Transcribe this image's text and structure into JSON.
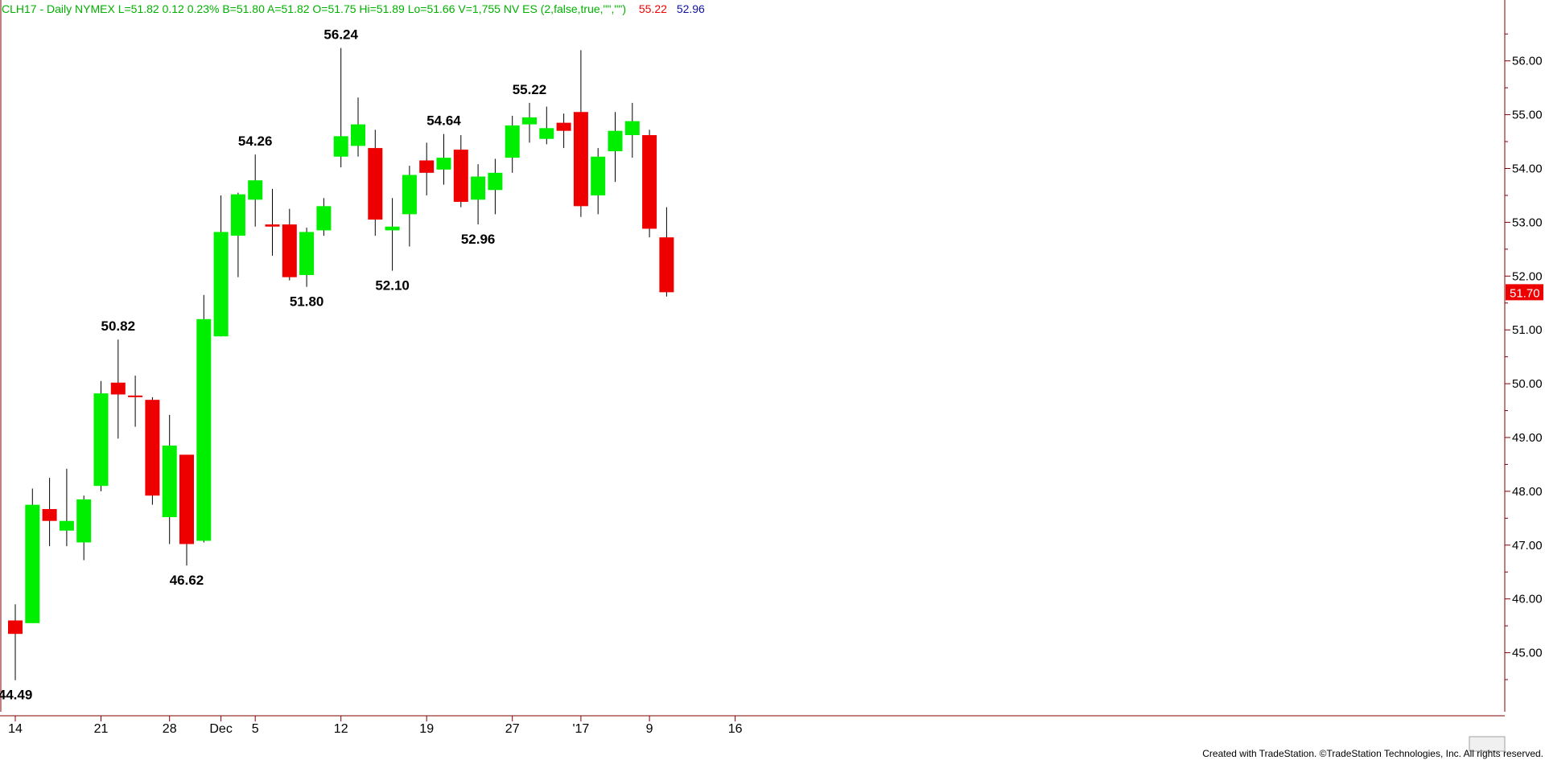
{
  "header": {
    "symbol_info": "CLH17 - Daily  NYMEX  L=51.82  0.12  0.23%  B=51.80  A=51.82  O=51.75  Hi=51.89  Lo=51.66  V=1,755  NV ES (2,false,true,\"\",\"\")",
    "indicator_high": "55.22",
    "indicator_low": "52.96"
  },
  "footer": {
    "text": "Created with TradeStation. ©TradeStation Technologies, Inc. All rights reserved."
  },
  "colors": {
    "up": "#00ee00",
    "down": "#ee0000",
    "header_text": "#00b000",
    "indicator_high": "#ee0000",
    "indicator_low": "#1010a0",
    "axis": "#800000"
  },
  "last_price": {
    "label": "51.70",
    "value": 51.7
  },
  "chart_data": {
    "type": "candlestick",
    "y_ticks": [
      "45.00",
      "46.00",
      "47.00",
      "48.00",
      "49.00",
      "50.00",
      "51.00",
      "52.00",
      "53.00",
      "54.00",
      "55.00",
      "56.00"
    ],
    "ylim": [
      43.7,
      57.0
    ],
    "x_ticks": [
      {
        "label": "14",
        "index": 0
      },
      {
        "label": "21",
        "index": 5
      },
      {
        "label": "28",
        "index": 9
      },
      {
        "label": "Dec",
        "index": 12
      },
      {
        "label": "5",
        "index": 14
      },
      {
        "label": "12",
        "index": 19
      },
      {
        "label": "19",
        "index": 24
      },
      {
        "label": "27",
        "index": 29
      },
      {
        "label": "'17",
        "index": 33
      },
      {
        "label": "9",
        "index": 37
      },
      {
        "label": "16",
        "index": 42
      }
    ],
    "candles": [
      {
        "o": 45.6,
        "h": 45.9,
        "l": 44.49,
        "c": 45.35
      },
      {
        "o": 45.55,
        "h": 48.05,
        "l": 45.55,
        "c": 47.75
      },
      {
        "o": 47.67,
        "h": 48.25,
        "l": 46.98,
        "c": 47.45
      },
      {
        "o": 47.27,
        "h": 48.42,
        "l": 46.98,
        "c": 47.45
      },
      {
        "o": 47.05,
        "h": 47.92,
        "l": 46.72,
        "c": 47.85
      },
      {
        "o": 48.1,
        "h": 50.05,
        "l": 48.0,
        "c": 49.82
      },
      {
        "o": 50.02,
        "h": 50.82,
        "l": 48.98,
        "c": 49.8
      },
      {
        "o": 49.78,
        "h": 50.15,
        "l": 49.2,
        "c": 49.76
      },
      {
        "o": 49.7,
        "h": 49.75,
        "l": 47.75,
        "c": 47.92
      },
      {
        "o": 47.52,
        "h": 49.42,
        "l": 47.02,
        "c": 48.85
      },
      {
        "o": 48.68,
        "h": 48.68,
        "l": 46.62,
        "c": 47.02
      },
      {
        "o": 47.08,
        "h": 51.65,
        "l": 47.05,
        "c": 51.2
      },
      {
        "o": 50.88,
        "h": 53.5,
        "l": 50.88,
        "c": 52.82
      },
      {
        "o": 52.75,
        "h": 53.55,
        "l": 51.98,
        "c": 53.52
      },
      {
        "o": 53.42,
        "h": 54.26,
        "l": 52.92,
        "c": 53.78
      },
      {
        "o": 52.96,
        "h": 53.62,
        "l": 52.38,
        "c": 52.92
      },
      {
        "o": 52.96,
        "h": 53.25,
        "l": 51.92,
        "c": 51.98
      },
      {
        "o": 52.02,
        "h": 52.9,
        "l": 51.8,
        "c": 52.82
      },
      {
        "o": 52.85,
        "h": 53.45,
        "l": 52.75,
        "c": 53.3
      },
      {
        "o": 54.22,
        "h": 56.24,
        "l": 54.02,
        "c": 54.6
      },
      {
        "o": 54.42,
        "h": 55.32,
        "l": 54.22,
        "c": 54.82
      },
      {
        "o": 54.38,
        "h": 54.72,
        "l": 52.75,
        "c": 53.05
      },
      {
        "o": 52.85,
        "h": 53.45,
        "l": 52.1,
        "c": 52.92
      },
      {
        "o": 53.15,
        "h": 54.05,
        "l": 52.55,
        "c": 53.88
      },
      {
        "o": 54.15,
        "h": 54.48,
        "l": 53.5,
        "c": 53.92
      },
      {
        "o": 53.98,
        "h": 54.64,
        "l": 53.7,
        "c": 54.2
      },
      {
        "o": 54.35,
        "h": 54.62,
        "l": 53.28,
        "c": 53.38
      },
      {
        "o": 53.42,
        "h": 54.08,
        "l": 52.96,
        "c": 53.85
      },
      {
        "o": 53.6,
        "h": 54.18,
        "l": 53.15,
        "c": 53.92
      },
      {
        "o": 54.2,
        "h": 54.98,
        "l": 53.92,
        "c": 54.8
      },
      {
        "o": 54.82,
        "h": 55.22,
        "l": 54.48,
        "c": 54.95
      },
      {
        "o": 54.55,
        "h": 55.15,
        "l": 54.45,
        "c": 54.75
      },
      {
        "o": 54.85,
        "h": 55.02,
        "l": 54.38,
        "c": 54.7
      },
      {
        "o": 55.05,
        "h": 56.2,
        "l": 53.1,
        "c": 53.3
      },
      {
        "o": 53.5,
        "h": 54.38,
        "l": 53.15,
        "c": 54.22
      },
      {
        "o": 54.32,
        "h": 55.05,
        "l": 53.75,
        "c": 54.7
      },
      {
        "o": 54.62,
        "h": 55.22,
        "l": 54.2,
        "c": 54.88
      },
      {
        "o": 54.62,
        "h": 54.72,
        "l": 52.72,
        "c": 52.88
      },
      {
        "o": 52.72,
        "h": 53.28,
        "l": 51.62,
        "c": 51.7
      }
    ],
    "annotations": [
      {
        "label": "44.49",
        "index": 0,
        "price": 44.49,
        "pos": "below"
      },
      {
        "label": "50.82",
        "index": 6,
        "price": 50.82,
        "pos": "above"
      },
      {
        "label": "46.62",
        "index": 10,
        "price": 46.62,
        "pos": "below"
      },
      {
        "label": "54.26",
        "index": 14,
        "price": 54.26,
        "pos": "above"
      },
      {
        "label": "51.80",
        "index": 17,
        "price": 51.8,
        "pos": "below"
      },
      {
        "label": "56.24",
        "index": 19,
        "price": 56.24,
        "pos": "above"
      },
      {
        "label": "52.10",
        "index": 22,
        "price": 52.1,
        "pos": "below"
      },
      {
        "label": "54.64",
        "index": 25,
        "price": 54.64,
        "pos": "above"
      },
      {
        "label": "52.96",
        "index": 27,
        "price": 52.96,
        "pos": "below"
      },
      {
        "label": "55.22",
        "index": 30,
        "price": 55.22,
        "pos": "above"
      }
    ]
  }
}
